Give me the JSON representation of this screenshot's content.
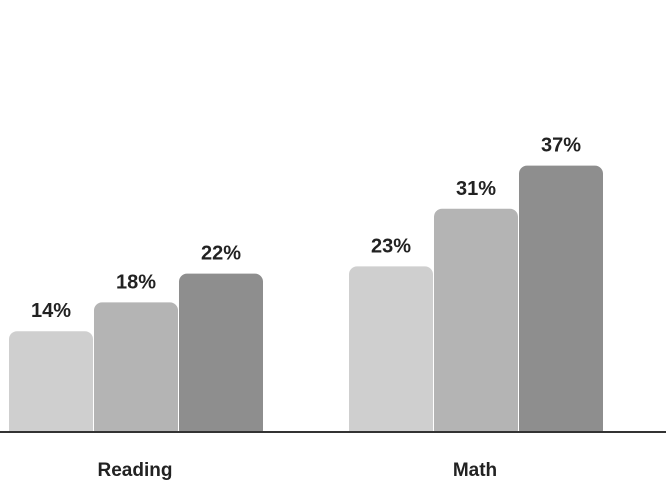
{
  "chart_data": {
    "type": "bar",
    "categories": [
      "Reading",
      "Math"
    ],
    "series": [
      {
        "values": [
          14,
          23
        ]
      },
      {
        "values": [
          18,
          31
        ]
      },
      {
        "values": [
          22,
          37
        ]
      }
    ],
    "value_labels": [
      [
        "14%",
        "18%",
        "22%"
      ],
      [
        "23%",
        "31%",
        "37%"
      ]
    ],
    "ylim": [
      0,
      60
    ],
    "grid": false,
    "legend": "none",
    "colors": [
      "#cfcfcf",
      "#b4b4b4",
      "#8e8e8e"
    ],
    "baseline_color": "#333333"
  }
}
